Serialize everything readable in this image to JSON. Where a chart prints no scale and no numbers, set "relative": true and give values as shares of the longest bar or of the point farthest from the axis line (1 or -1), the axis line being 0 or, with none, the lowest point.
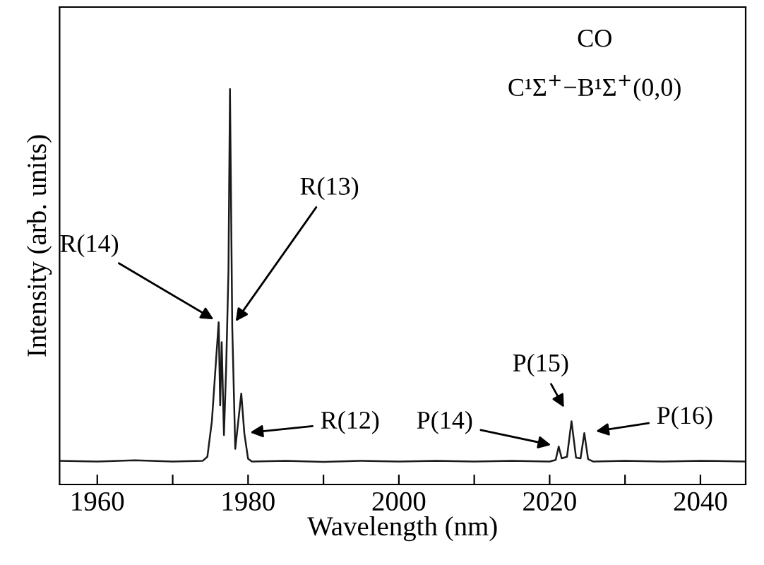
{
  "chart_data": {
    "type": "line",
    "relative": true,
    "xlabel": "Wavelength (nm)",
    "ylabel": "Intensity (arb. units)",
    "xlim": [
      1955,
      2046
    ],
    "xticks": [
      1960,
      {
        "value": 1970,
        "label": null
      },
      1980,
      {
        "value": 1990,
        "label": null
      },
      2000,
      {
        "value": 2010,
        "label": null
      },
      2020,
      {
        "value": 2030,
        "label": null
      },
      2040
    ],
    "x": [
      1955,
      1960,
      1965,
      1970,
      1974,
      1974.6,
      1975.2,
      1975.7,
      1976.1,
      1976.3,
      1976.5,
      1976.8,
      1977.1,
      1977.4,
      1977.6,
      1977.9,
      1978.3,
      1978.7,
      1979.1,
      1979.5,
      1980,
      1980.5,
      1985,
      1990,
      1995,
      2000,
      2005,
      2010,
      2015,
      2020,
      2020.8,
      2021.2,
      2021.6,
      2022.3,
      2022.9,
      2023.5,
      2024.1,
      2024.6,
      2025.1,
      2025.8,
      2030,
      2035,
      2040,
      2046
    ],
    "series": [
      {
        "color": "#1a1a1a",
        "values": [
          0.06,
          0.058,
          0.061,
          0.058,
          0.06,
          0.07,
          0.16,
          0.3,
          0.41,
          0.2,
          0.36,
          0.125,
          0.3,
          0.54,
          1.0,
          0.4,
          0.09,
          0.16,
          0.23,
          0.13,
          0.065,
          0.058,
          0.06,
          0.057,
          0.06,
          0.058,
          0.06,
          0.058,
          0.06,
          0.058,
          0.062,
          0.096,
          0.066,
          0.07,
          0.16,
          0.068,
          0.066,
          0.13,
          0.064,
          0.058,
          0.06,
          0.058,
          0.06,
          0.058
        ]
      }
    ],
    "grid": false,
    "legend": false,
    "marker": "none",
    "line_style": "solid",
    "annotations": [
      "CO",
      "C¹Σ$^{+}$−B¹Σ$^{+}$(0,0)",
      {
        "text": "R(13)",
        "x": 1977.9,
        "y": 0.4
      },
      {
        "text": "R(14)",
        "x": 1976.1,
        "y": 0.41
      },
      {
        "text": "R(12)",
        "x": 1979.5,
        "y": 0.13
      },
      {
        "text": "P(14)",
        "x": 2021.2,
        "y": 0.096
      },
      {
        "text": "P(15)",
        "x": 2022.9,
        "y": 0.16
      },
      {
        "text": "P(16)",
        "x": 2024.6,
        "y": 0.13
      }
    ]
  }
}
